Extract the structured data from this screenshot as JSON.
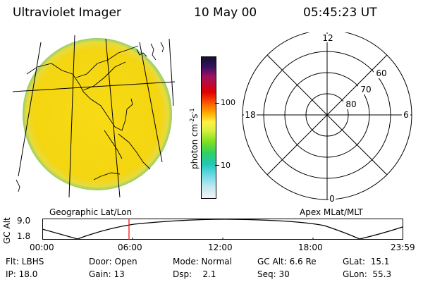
{
  "header": {
    "title": "Ultraviolet Imager",
    "date": "10 May 00",
    "time": "05:45:23 UT"
  },
  "colorbar": {
    "label_unit": "photon cm",
    "label_sup": "-2",
    "label_s": "s",
    "label_sup2": "-1",
    "tick_100": "100",
    "tick_10": "10"
  },
  "polar": {
    "mlt_top": "12",
    "mlt_left": "18",
    "mlt_right": "6",
    "mlt_bottom": "0",
    "lat_60": "60",
    "lat_70": "70",
    "lat_80": "80"
  },
  "timeline": {
    "left_title": "Geographic Lat/Lon",
    "right_title": "Apex MLat/MLT",
    "y_label": "GC Alt",
    "y_max": "9.0",
    "y_min": "1.8",
    "ticks": [
      "00:00",
      "06:00",
      "12:00",
      "18:00",
      "23:59"
    ]
  },
  "info": {
    "flt": "Flt: LBHS",
    "ip": "IP: 18.0",
    "door": "Door: Open",
    "gain": "Gain: 13",
    "mode": "Mode: Normal",
    "dsp": "Dsp:    2.1",
    "gcalt": "GC Alt: 6.6 Re",
    "seq": "Seq: 30",
    "glat": "GLat:  15.1",
    "glon": "GLon:  55.3"
  },
  "colors": {
    "disk_fill": "#f2dc14",
    "disk_edge": "#7fd07f",
    "current_time_marker": "#ff0000"
  }
}
